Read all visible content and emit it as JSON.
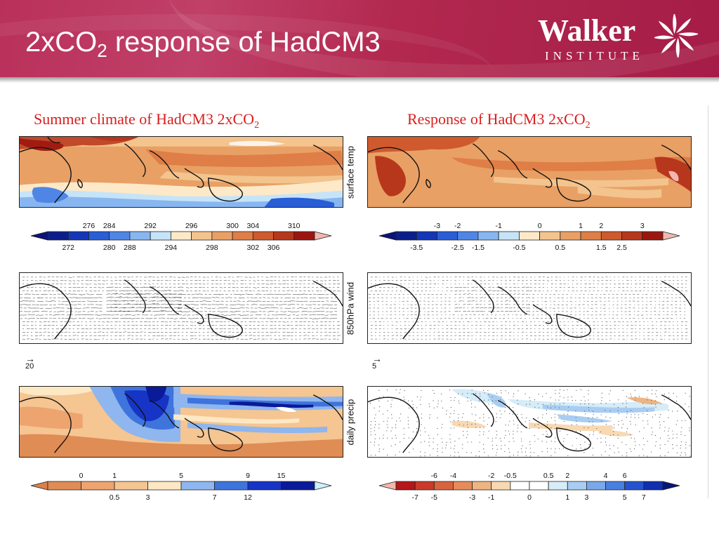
{
  "header": {
    "title_main": "2xCO",
    "title_sub": "2",
    "title_rest": " response of HadCM3",
    "logo_word": "Walker",
    "logo_sub": "INSTITUTE"
  },
  "panels": {
    "left_title_main": "Summer climate of HadCM3 2xCO",
    "left_title_sub": "2",
    "right_title_main": "Response of HadCM3 2xCO",
    "right_title_sub": "2",
    "row_labels": [
      "surface temp",
      "850hPa wind",
      "daily precip"
    ]
  },
  "reference_vectors": {
    "left": {
      "arrow": "→",
      "value": "20"
    },
    "right": {
      "arrow": "→",
      "value": "5"
    }
  },
  "colorbars": {
    "temp_mean": {
      "upper_labels": [
        "276",
        "284",
        "292",
        "296",
        "300",
        "304",
        "310"
      ],
      "lower_labels": [
        "272",
        "280",
        "288",
        "294",
        "298",
        "302",
        "306"
      ],
      "colors": [
        "#0b1f8c",
        "#1436b8",
        "#2a5ed6",
        "#4f86e6",
        "#88b6f0",
        "#c6e4f8",
        "#fde9c8",
        "#f3c48e",
        "#e9a065",
        "#df7e47",
        "#cf5a2e",
        "#b7371c",
        "#9c160f"
      ],
      "low_color": "#0a1478",
      "high_color": "#f2b7ae"
    },
    "temp_response": {
      "upper_labels": [
        "-3",
        "-2",
        "-1",
        "0",
        "1",
        "2",
        "3"
      ],
      "lower_labels": [
        "-3.5",
        "-2.5",
        "-1.5",
        "-0.5",
        "0.5",
        "1.5",
        "2.5"
      ],
      "colors": [
        "#0b1f8c",
        "#1436b8",
        "#2a5ed6",
        "#4f86e6",
        "#88b6f0",
        "#c6e4f8",
        "#fde9c8",
        "#f3c48e",
        "#e9a065",
        "#df7e47",
        "#cf5a2e",
        "#b7371c",
        "#9c160f"
      ],
      "low_color": "#0a1478",
      "high_color": "#f2b7ae"
    },
    "precip_mean": {
      "upper_labels": [
        "0",
        "1",
        "5",
        "9",
        "15"
      ],
      "lower_labels": [
        "0.5",
        "3",
        "7",
        "12"
      ],
      "colors": [
        "#df8c55",
        "#eda46e",
        "#f5c592",
        "#fde8c4",
        "#8fb6ee",
        "#3f74dc",
        "#1634c6",
        "#0a1a98"
      ],
      "low_color": "#d9804c",
      "high_color": "#cfeff9"
    },
    "precip_response": {
      "upper_labels": [
        "-6",
        "-4",
        "-2",
        "-0.5",
        "0.5",
        "2",
        "4",
        "6"
      ],
      "lower_labels": [
        "-7",
        "-5",
        "-3",
        "-1",
        "0",
        "1",
        "3",
        "5",
        "7"
      ],
      "colors": [
        "#b5161a",
        "#c93a2a",
        "#d9633e",
        "#e58c5a",
        "#efb482",
        "#f8d9b2",
        "#ffffff",
        "#ffffff",
        "#d6ecf8",
        "#a9cdf2",
        "#79a9ea",
        "#4a7fe0",
        "#2553cf",
        "#0f2fb0"
      ],
      "low_color": "#f2b7ae",
      "high_color": "#0a1478"
    }
  },
  "icons": {
    "logo_mark": "pinwheel-icon",
    "reference_arrow": "arrow-right-icon"
  }
}
